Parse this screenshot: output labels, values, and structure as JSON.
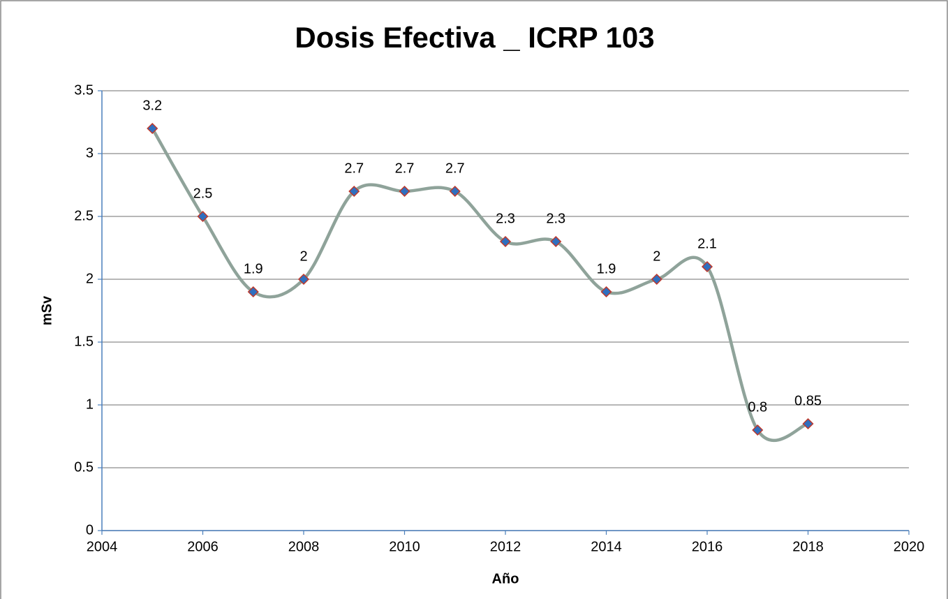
{
  "chart_data": {
    "type": "line",
    "smooth": true,
    "title": "Dosis Efectiva _ ICRP 103",
    "xlabel": "Año",
    "ylabel": "mSv",
    "x": [
      2005,
      2006,
      2007,
      2008,
      2009,
      2010,
      2011,
      2012,
      2013,
      2014,
      2015,
      2016,
      2017,
      2018
    ],
    "series": [
      {
        "color": "#8fa39a",
        "marker_color": "#2f6fbf",
        "marker_edge": "#c0392b",
        "values": [
          3.2,
          2.5,
          1.9,
          2,
          2.7,
          2.7,
          2.7,
          2.3,
          2.3,
          1.9,
          2,
          2.1,
          0.8,
          0.85
        ]
      }
    ],
    "xlim": [
      2004,
      2020
    ],
    "xticks": [
      2004,
      2006,
      2008,
      2010,
      2012,
      2014,
      2016,
      2018,
      2020
    ],
    "ylim": [
      0,
      3.5
    ],
    "yticks": [
      0,
      0.5,
      1,
      1.5,
      2,
      2.5,
      3,
      3.5
    ],
    "grid": true,
    "data_labels": true
  }
}
